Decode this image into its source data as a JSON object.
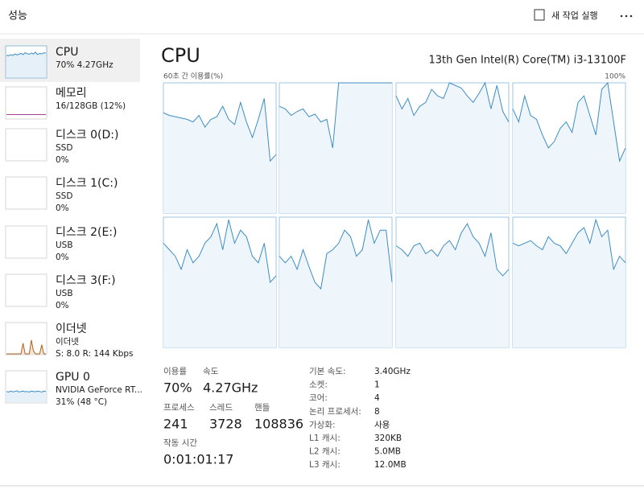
{
  "header": {
    "title": "성능",
    "run_task": "새 작업 실행"
  },
  "sidebar": [
    {
      "name": "CPU",
      "details": [
        "70% 4.27GHz"
      ],
      "color": "#3c8dc4",
      "graph": [
        72,
        70,
        74,
        71,
        76,
        73,
        75,
        78,
        74,
        80,
        77,
        75,
        79,
        76,
        82,
        74,
        78,
        76,
        80,
        79
      ]
    },
    {
      "name": "메모리",
      "details": [
        "16/128GB (12%)"
      ],
      "color": "#a04090",
      "graph": [
        12,
        12,
        12,
        12,
        12,
        12,
        12,
        12,
        12,
        12,
        12,
        12,
        12,
        12,
        12,
        12,
        12,
        12,
        12,
        12
      ]
    },
    {
      "name": "디스크 0(D:)",
      "details": [
        "SSD",
        "0%"
      ],
      "color": "#4d9a2a"
    },
    {
      "name": "디스크 1(C:)",
      "details": [
        "SSD",
        "0%"
      ],
      "color": "#4d9a2a"
    },
    {
      "name": "디스크 2(E:)",
      "details": [
        "USB",
        "0%"
      ],
      "color": "#4d9a2a"
    },
    {
      "name": "디스크 3(F:)",
      "details": [
        "USB",
        "0%"
      ],
      "color": "#4d9a2a"
    },
    {
      "name": "이더넷",
      "details": [
        "이더넷",
        "S: 8.0 R: 144 Kbps"
      ],
      "color": "#b0621e",
      "graph": [
        0,
        0,
        0,
        0,
        0,
        0,
        0,
        0,
        35,
        0,
        0,
        0,
        45,
        10,
        0,
        0,
        0,
        30,
        0,
        0
      ]
    },
    {
      "name": "GPU 0",
      "details": [
        "NVIDIA GeForce RT...",
        "31% (48 °C)"
      ],
      "color": "#3c8dc4",
      "graph": [
        35,
        33,
        36,
        34,
        35,
        37,
        33,
        35,
        36,
        34,
        35,
        33,
        36,
        35,
        34,
        36,
        35,
        33,
        36,
        35
      ]
    }
  ],
  "main": {
    "title": "CPU",
    "processor": "13th Gen Intel(R) Core(TM) i3-13100F",
    "graph_label": "60초 간 이용률(%)",
    "graph_max": "100%",
    "ylim": [
      0,
      100
    ],
    "cores": [
      [
        77,
        75,
        74,
        73,
        72,
        70,
        75,
        66,
        72,
        74,
        82,
        72,
        68,
        85,
        70,
        58,
        72,
        88,
        40,
        45
      ],
      [
        82,
        80,
        75,
        78,
        80,
        74,
        76,
        70,
        72,
        50,
        100,
        100,
        100,
        100,
        100,
        100,
        100,
        100,
        100,
        100
      ],
      [
        90,
        80,
        88,
        75,
        82,
        85,
        95,
        90,
        88,
        100,
        98,
        96,
        90,
        85,
        92,
        100,
        80,
        98,
        78,
        70
      ],
      [
        80,
        70,
        90,
        75,
        72,
        60,
        50,
        55,
        65,
        70,
        62,
        85,
        90,
        75,
        60,
        95,
        100,
        70,
        40,
        50
      ],
      [
        80,
        75,
        70,
        60,
        75,
        65,
        70,
        80,
        85,
        95,
        75,
        98,
        80,
        90,
        85,
        70,
        65,
        80,
        50,
        55
      ],
      [
        70,
        65,
        70,
        60,
        75,
        62,
        50,
        45,
        72,
        75,
        80,
        90,
        85,
        70,
        75,
        98,
        80,
        90,
        90,
        50
      ],
      [
        78,
        75,
        70,
        78,
        80,
        72,
        75,
        70,
        78,
        82,
        75,
        88,
        95,
        85,
        80,
        70,
        88,
        60,
        55,
        60
      ],
      [
        80,
        78,
        80,
        82,
        78,
        75,
        85,
        80,
        78,
        72,
        80,
        88,
        92,
        80,
        98,
        85,
        90,
        60,
        70,
        65
      ]
    ]
  },
  "stats": [
    {
      "label": "이용률",
      "value": "70%"
    },
    {
      "label": "속도",
      "value": "4.27GHz"
    },
    {
      "label": "프로세스",
      "value": "241"
    },
    {
      "label": "스레드",
      "value": "3728"
    },
    {
      "label": "핸들",
      "value": "108836"
    },
    {
      "label": "작동 시간",
      "value": "0:01:01:17"
    }
  ],
  "specs": [
    [
      "기본 속도:",
      "3.40GHz"
    ],
    [
      "소켓:",
      "1"
    ],
    [
      "코어:",
      "4"
    ],
    [
      "논리 프로세서:",
      "8"
    ],
    [
      "가상화:",
      "사용"
    ],
    [
      "L1 캐시:",
      "320KB"
    ],
    [
      "L2 캐시:",
      "5.0MB"
    ],
    [
      "L3 캐시:",
      "12.0MB"
    ]
  ]
}
